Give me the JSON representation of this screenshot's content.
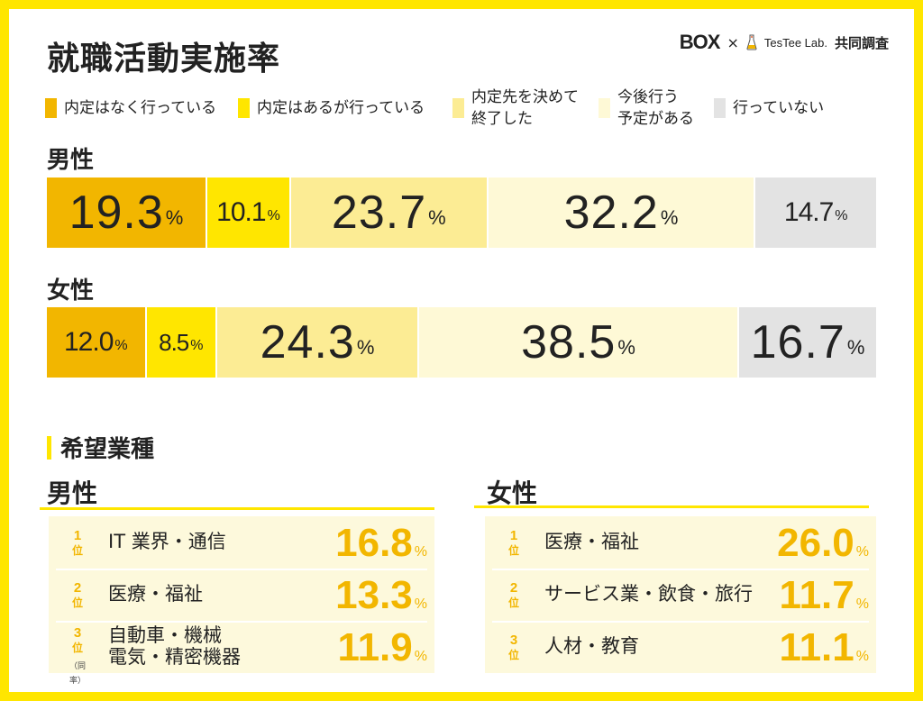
{
  "title": "就職活動実施率",
  "brand": {
    "box": "BOX",
    "times": "×",
    "testee": "TesTee Lab.",
    "joint": "共同調査"
  },
  "legend": [
    {
      "label": "内定はなく行っている",
      "color": "#f2b600"
    },
    {
      "label": "内定はあるが行っている",
      "color": "#ffe600"
    },
    {
      "label": "内定先を決めて\n終了した",
      "color": "#fcec94"
    },
    {
      "label": "今後行う\n予定がある",
      "color": "#fef9d6"
    },
    {
      "label": "行っていない",
      "color": "#e3e3e3"
    }
  ],
  "percent_unit": "%",
  "chart_data": {
    "type": "bar",
    "orientation": "horizontal-stacked-100",
    "title": "就職活動実施率",
    "categories": [
      "男性",
      "女性"
    ],
    "series": [
      {
        "name": "内定はなく行っている",
        "values": [
          19.3,
          12.0
        ]
      },
      {
        "name": "内定はあるが行っている",
        "values": [
          10.1,
          8.5
        ]
      },
      {
        "name": "内定先を決めて終了した",
        "values": [
          23.7,
          24.3
        ]
      },
      {
        "name": "今後行う予定がある",
        "values": [
          32.2,
          38.5
        ]
      },
      {
        "name": "行っていない",
        "values": [
          14.7,
          16.7
        ]
      }
    ],
    "value_labels": {
      "男性": [
        "19.3",
        "10.1",
        "23.7",
        "32.2",
        "14.7"
      ],
      "女性": [
        "12.0",
        "8.5",
        "24.3",
        "38.5",
        "16.7"
      ]
    }
  },
  "ranking": {
    "section_title": "希望業種",
    "rank_suffix": "位",
    "tie_note": "（同率）",
    "male": {
      "label": "男性",
      "items": [
        {
          "rank": "1",
          "name": "IT 業界・通信",
          "value": "16.8"
        },
        {
          "rank": "2",
          "name": "医療・福祉",
          "value": "13.3"
        },
        {
          "rank": "3",
          "name": "自動車・機械\n電気・精密機器",
          "value": "11.9",
          "tie": true
        }
      ]
    },
    "female": {
      "label": "女性",
      "items": [
        {
          "rank": "1",
          "name": "医療・福祉",
          "value": "26.0"
        },
        {
          "rank": "2",
          "name": "サービス業・飲食・旅行",
          "value": "11.7"
        },
        {
          "rank": "3",
          "name": "人材・教育",
          "value": "11.1"
        }
      ]
    }
  }
}
